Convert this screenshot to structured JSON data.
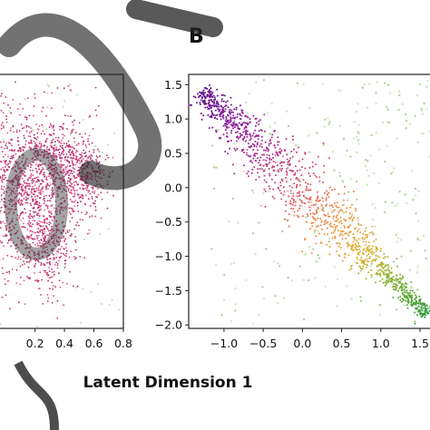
{
  "panel_b_letter": "B",
  "shared_xlabel": "Latent Dimension 1",
  "chart_data": [
    {
      "panel": "left (cropped)",
      "type": "scatter",
      "title": "",
      "xlabel": "",
      "ylabel": "",
      "x_ticks": [
        0.2,
        0.4,
        0.6,
        0.8
      ],
      "x_tick_labels": [
        "0.2",
        "0.4",
        "0.6",
        "0.8"
      ],
      "xlim": [
        -0.05,
        0.8
      ],
      "ylim": [
        -1.0,
        1.0
      ],
      "grid": false,
      "series": [
        {
          "color": "#c8306e",
          "clusters": [
            {
              "cx": 0.12,
              "cy": 0.1,
              "sx": 0.17,
              "sy": 0.34,
              "n": 1100
            },
            {
              "cx": 0.38,
              "cy": 0.3,
              "sx": 0.13,
              "sy": 0.15,
              "n": 450
            },
            {
              "cx": 0.55,
              "cy": 0.18,
              "sx": 0.08,
              "sy": 0.14,
              "n": 180
            },
            {
              "cx": 0.28,
              "cy": -0.35,
              "sx": 0.1,
              "sy": 0.18,
              "n": 300
            }
          ]
        }
      ]
    },
    {
      "panel": "B",
      "type": "scatter",
      "title": "",
      "xlabel": "Latent Dimension 1",
      "ylabel": "",
      "x_ticks": [
        -1.0,
        -0.5,
        0.0,
        0.5,
        1.0,
        1.5
      ],
      "x_tick_labels": [
        "−1.0",
        "−0.5",
        "0.0",
        "0.5",
        "1.0",
        "1.5"
      ],
      "y_ticks": [
        1.5,
        1.0,
        0.5,
        0.0,
        -0.5,
        -1.0,
        -1.5,
        -2.0
      ],
      "y_tick_labels": [
        "1.5",
        "1.0",
        "0.5",
        "0.0",
        "−0.5",
        "−1.0",
        "−1.5",
        "−2.0"
      ],
      "xlim": [
        -1.45,
        1.65
      ],
      "ylim": [
        -2.05,
        1.65
      ],
      "grid": false,
      "diagonal_band": {
        "x_start": -1.3,
        "y_start": 1.42,
        "x_end": 1.6,
        "y_end": -1.85,
        "n": 1300,
        "colors_along_band": [
          "#5a0f8a",
          "#8a1a9a",
          "#b0308a",
          "#d8506a",
          "#f08a3a",
          "#e0b030",
          "#7ab030",
          "#2a9a3a"
        ]
      },
      "background_points": {
        "color": "#bcdcaa",
        "x_range": [
          -1.4,
          1.65
        ],
        "y_range": [
          -2.0,
          1.6
        ],
        "n": 260
      }
    }
  ]
}
